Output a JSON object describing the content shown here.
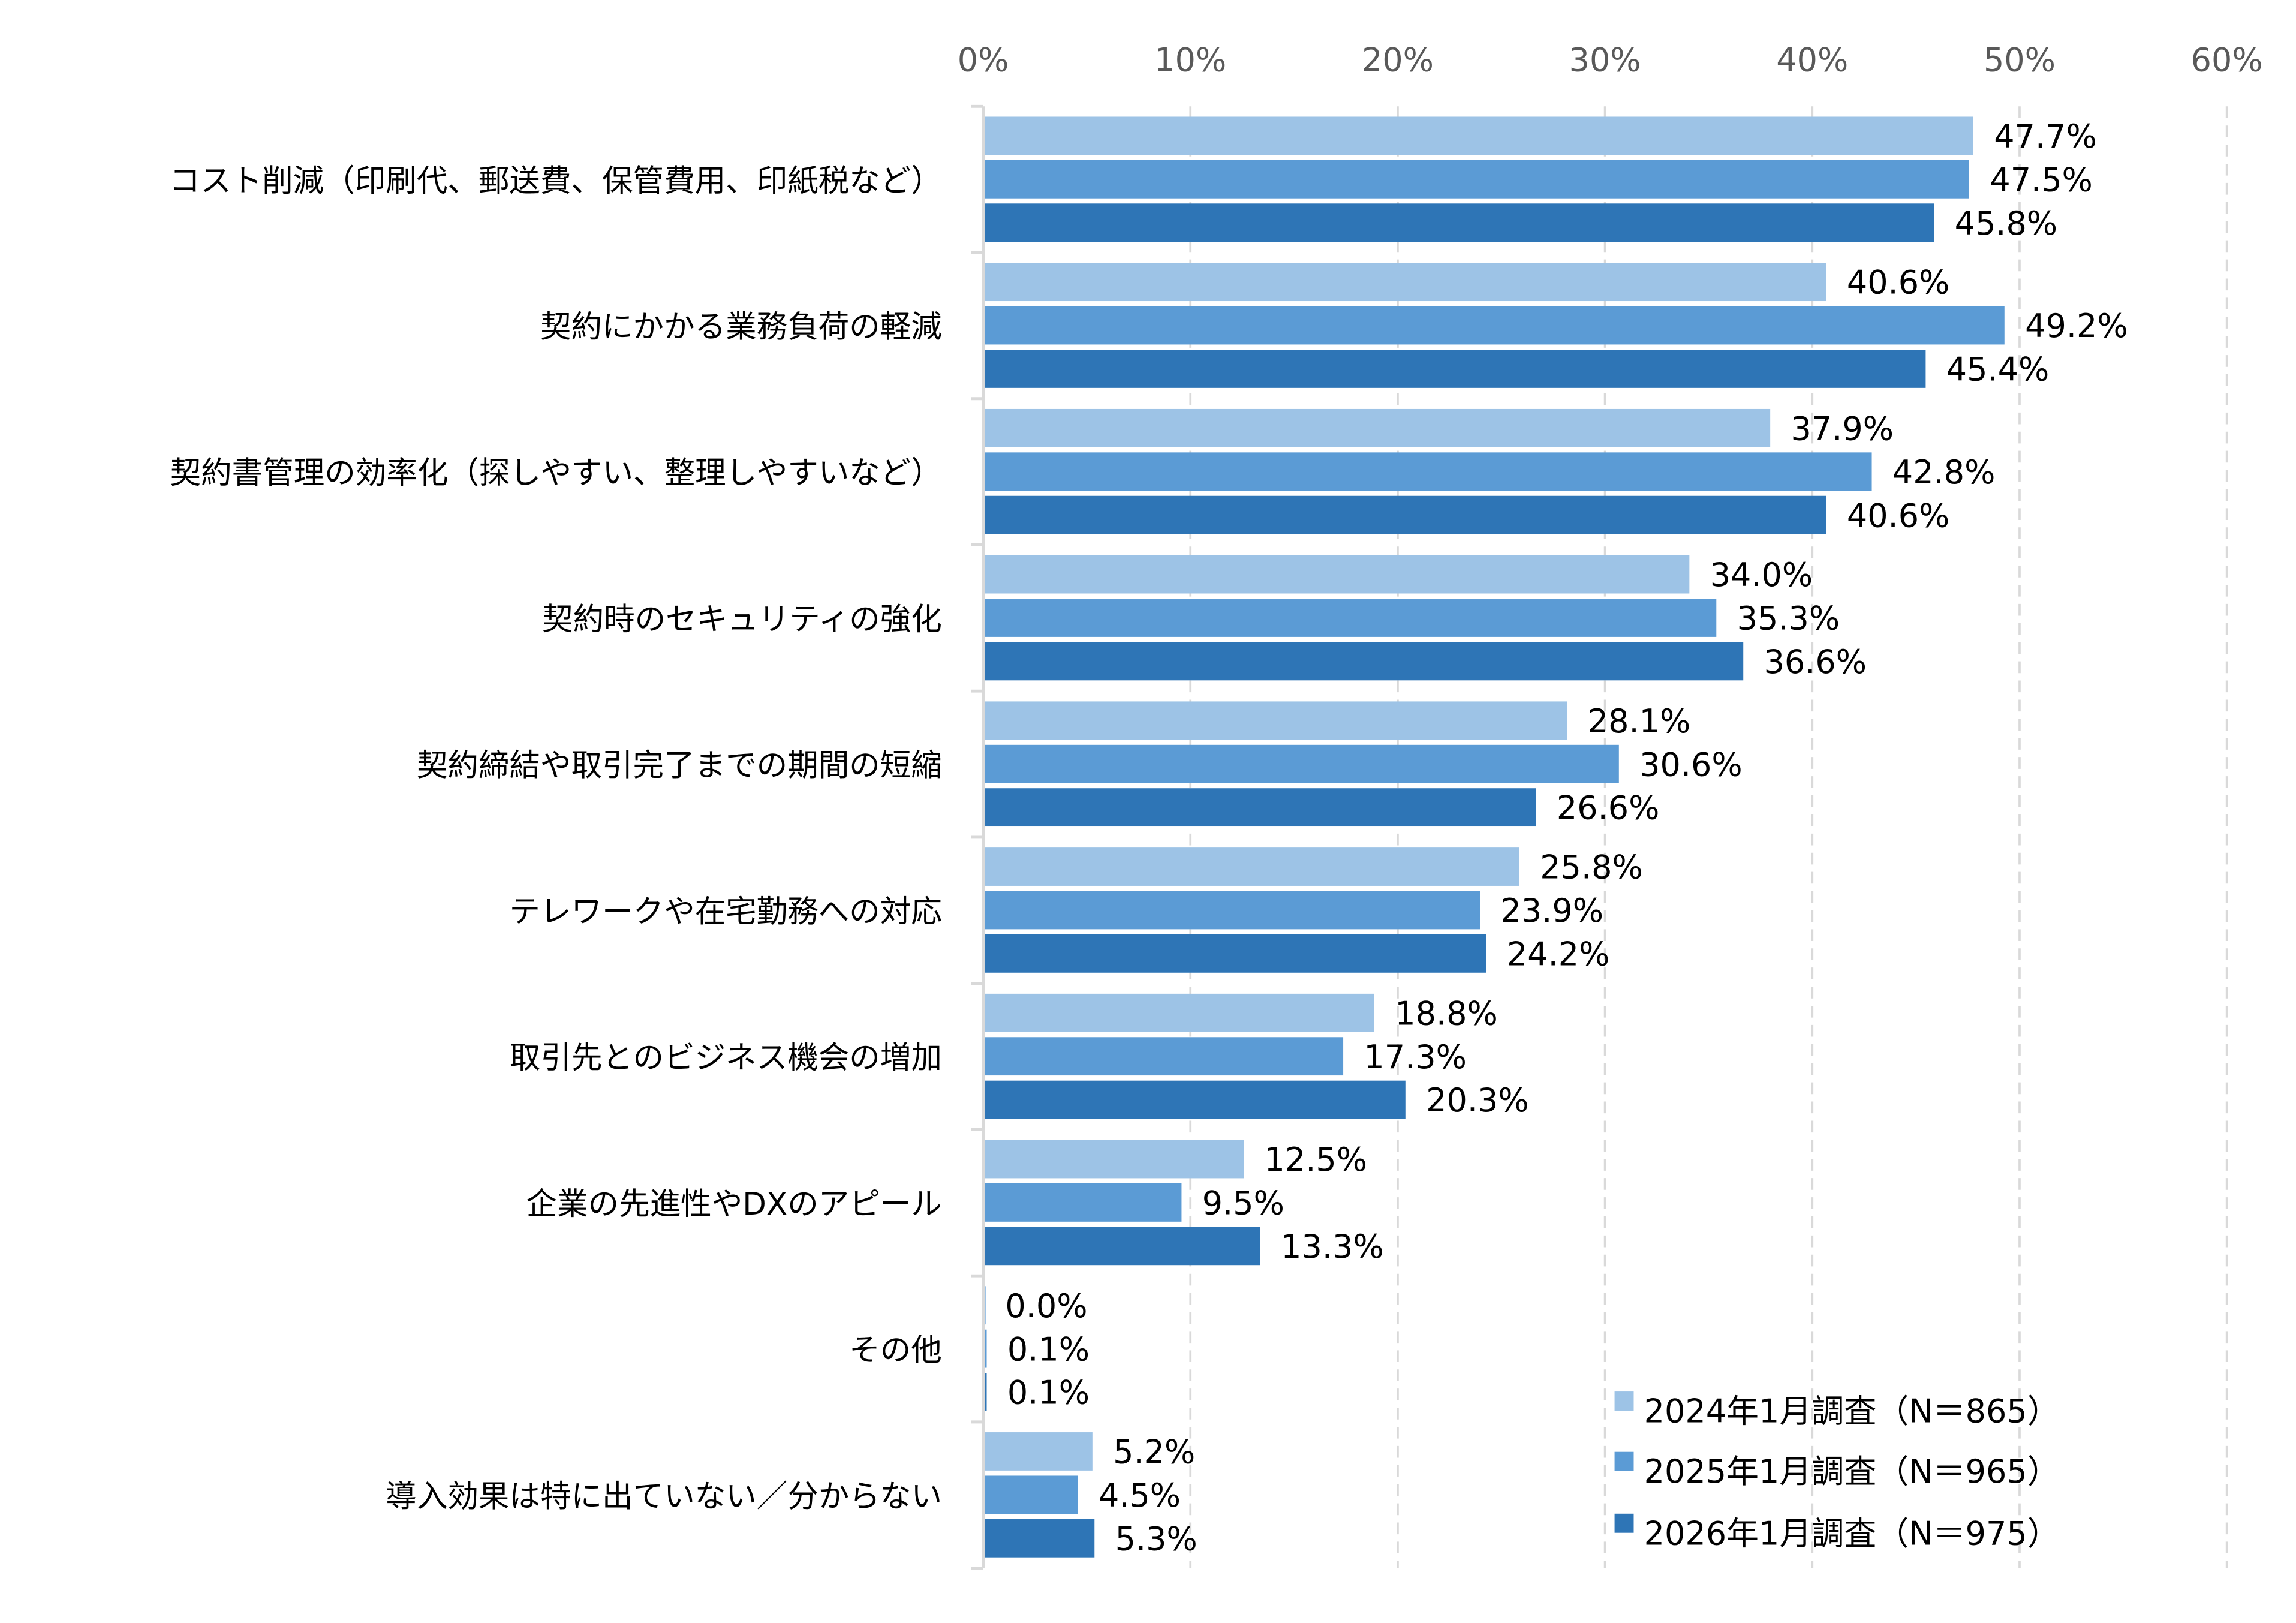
{
  "chart_data": {
    "type": "bar",
    "orientation": "horizontal",
    "xlim": [
      0,
      60
    ],
    "x_ticks": [
      "0%",
      "10%",
      "20%",
      "30%",
      "40%",
      "50%",
      "60%"
    ],
    "grid": true,
    "legend_position": "bottom-right",
    "categories": [
      "コスト削減（印刷代、郵送費、保管費用、印紙税など）",
      "契約にかかる業務負荷の軽減",
      "契約書管理の効率化（探しやすい、整理しやすいなど）",
      "契約時のセキュリティの強化",
      "契約締結や取引完了までの期間の短縮",
      "テレワークや在宅勤務への対応",
      "取引先とのビジネス機会の増加",
      "企業の先進性やDXのアピール",
      "その他",
      "導入効果は特に出ていない／分からない"
    ],
    "series": [
      {
        "name": "2024年1月調査（N＝865）",
        "color": "#9DC3E6",
        "values": [
          47.7,
          40.6,
          37.9,
          34.0,
          28.1,
          25.8,
          18.8,
          12.5,
          0.0,
          5.2
        ],
        "labels": [
          "47.7%",
          "40.6%",
          "37.9%",
          "34.0%",
          "28.1%",
          "25.8%",
          "18.8%",
          "12.5%",
          "0.0%",
          "5.2%"
        ]
      },
      {
        "name": "2025年1月調査（N＝965）",
        "color": "#5B9BD5",
        "values": [
          47.5,
          49.2,
          42.8,
          35.3,
          30.6,
          23.9,
          17.3,
          9.5,
          0.1,
          4.5
        ],
        "labels": [
          "47.5%",
          "49.2%",
          "42.8%",
          "35.3%",
          "30.6%",
          "23.9%",
          "17.3%",
          "9.5%",
          "0.1%",
          "4.5%"
        ]
      },
      {
        "name": "2026年1月調査（N＝975）",
        "color": "#2E75B6",
        "values": [
          45.8,
          45.4,
          40.6,
          36.6,
          26.6,
          24.2,
          20.3,
          13.3,
          0.1,
          5.3
        ],
        "labels": [
          "45.8%",
          "45.4%",
          "40.6%",
          "36.6%",
          "26.6%",
          "24.2%",
          "20.3%",
          "13.3%",
          "0.1%",
          "5.3%"
        ]
      }
    ]
  }
}
